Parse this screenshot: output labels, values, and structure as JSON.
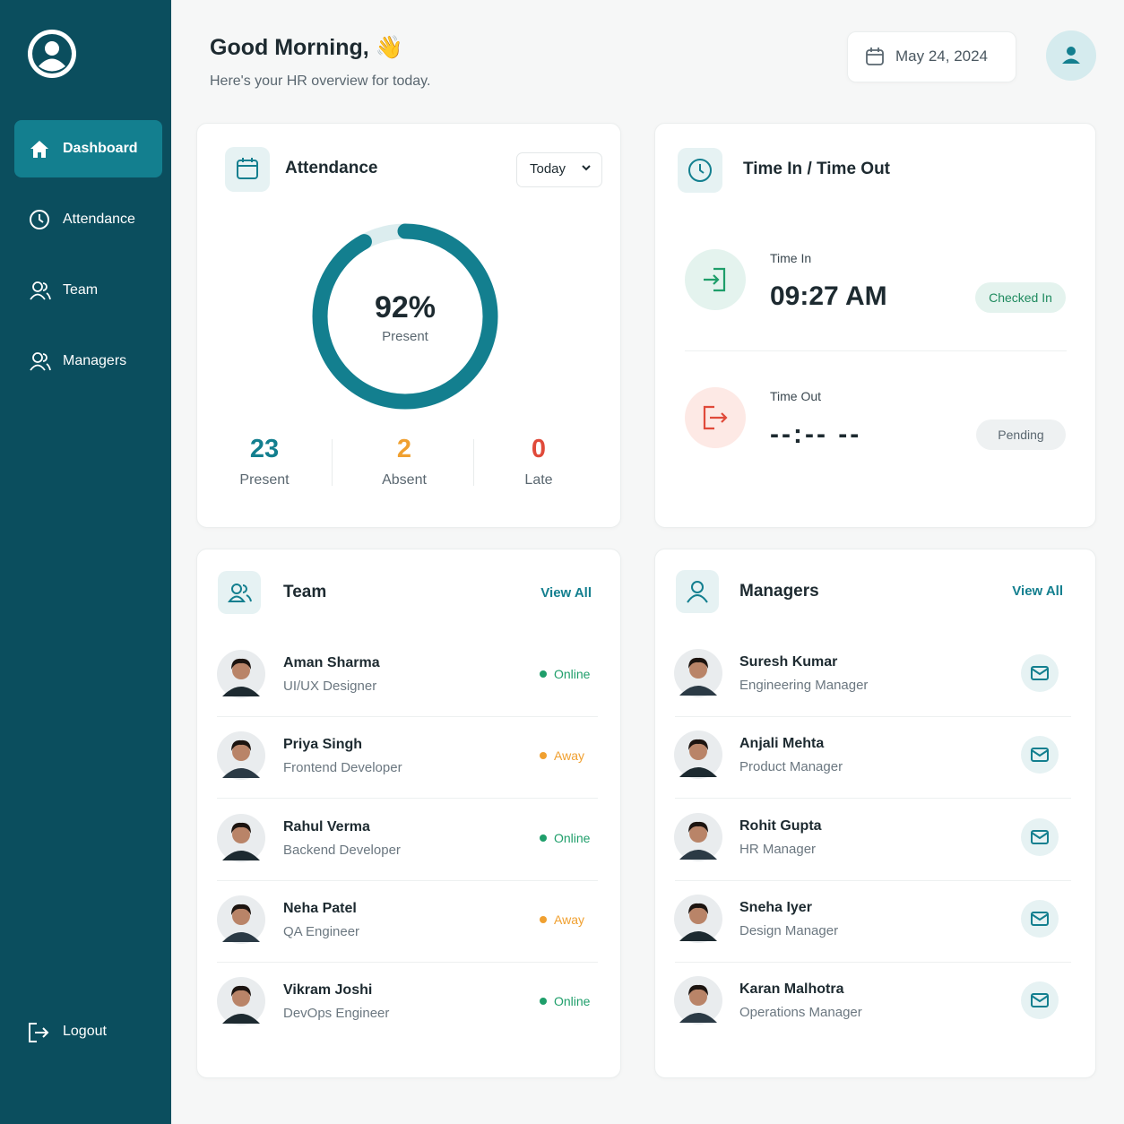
{
  "sidebar": {
    "nav": [
      "Dashboard",
      "Attendance",
      "Team",
      "Managers"
    ],
    "logout": "Logout"
  },
  "header": {
    "greeting": "Good Morning, 👋",
    "subtitle": "Here's your HR overview for today.",
    "date": "May 24, 2024"
  },
  "attendance": {
    "title": "Attendance",
    "filter": "Today",
    "rate": {
      "value": 92,
      "label": "92%"
    },
    "rate_caption": "Present",
    "stats": [
      {
        "value": 23,
        "label": "Present",
        "color": "#137f8f"
      },
      {
        "value": 2,
        "label": "Absent",
        "color": "#f0a030"
      },
      {
        "value": 0,
        "label": "Late",
        "color": "#e04a3a"
      }
    ]
  },
  "time": {
    "title": "Time In / Time Out",
    "entries": [
      {
        "label": "Time In",
        "time": "09:27 AM",
        "status": "Checked In"
      },
      {
        "label": "Time Out",
        "time": "--:-- --",
        "status": "Pending"
      }
    ]
  },
  "team": {
    "title": "Team",
    "view_all": "View All",
    "members": [
      {
        "name": "Aman Sharma",
        "role": "UI/UX Designer",
        "status": "Online",
        "status_color": "#1e9e6a"
      },
      {
        "name": "Priya Singh",
        "role": "Frontend Developer",
        "status": "Away",
        "status_color": "#f0a030"
      },
      {
        "name": "Rahul Verma",
        "role": "Backend Developer",
        "status": "Online",
        "status_color": "#1e9e6a"
      },
      {
        "name": "Neha Patel",
        "role": "QA Engineer",
        "status": "Away",
        "status_color": "#f0a030"
      },
      {
        "name": "Vikram Joshi",
        "role": "DevOps Engineer",
        "status": "Online",
        "status_color": "#1e9e6a"
      }
    ]
  },
  "managers": {
    "title": "Managers",
    "view_all": "View All",
    "members": [
      {
        "name": "Suresh Kumar",
        "role": "Engineering Manager"
      },
      {
        "name": "Anjali Mehta",
        "role": "Product Manager"
      },
      {
        "name": "Rohit Gupta",
        "role": "HR Manager"
      },
      {
        "name": "Sneha Iyer",
        "role": "Design Manager"
      },
      {
        "name": "Karan Malhotra",
        "role": "Operations Manager"
      }
    ]
  }
}
